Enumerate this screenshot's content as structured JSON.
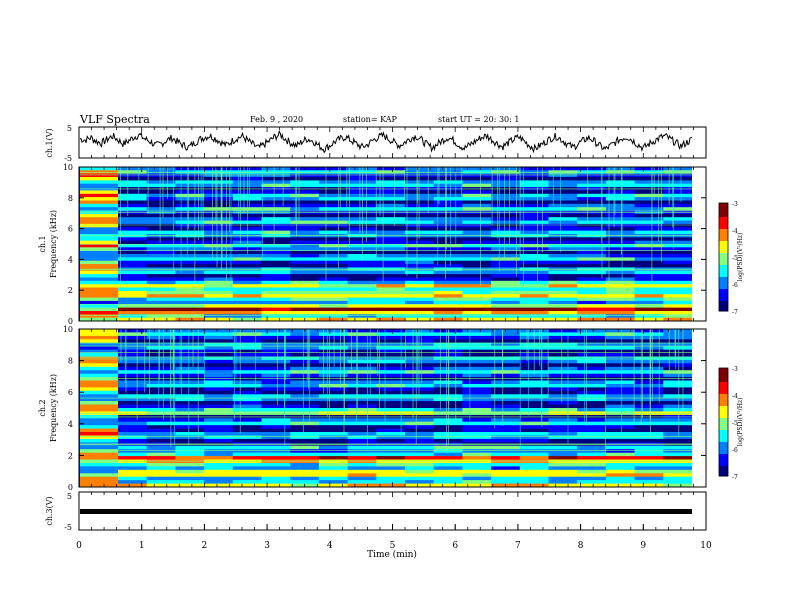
{
  "header": {
    "title": "VLF Spectra",
    "date": "Feb. 9 , 2020",
    "station": "station= KAP",
    "start": "start  UT =  20: 30: 1"
  },
  "chart_data": [
    {
      "type": "line",
      "ylabel": "ch.1(V)",
      "ylim": [
        -5,
        5
      ],
      "y_ticks": [
        "5",
        "-5"
      ],
      "xlim": [
        0,
        10
      ],
      "series": [
        {
          "description": "noisy waveform",
          "values": [
            1.2,
            0.8,
            1.6,
            0.4,
            -0.2,
            1.0,
            2.1,
            0.9,
            -0.5,
            0.6,
            1.8,
            2.4,
            1.1,
            0.3,
            -1.0,
            -0.4,
            0.7,
            1.5,
            0.2,
            -0.8,
            -1.6,
            -0.3,
            0.9,
            1.7,
            2.2,
            1.3,
            0.1,
            -0.9,
            0.4,
            1.4,
            2.0,
            0.6,
            -0.7,
            -1.8,
            -0.6,
            0.5,
            1.9,
            2.6,
            1.0,
            -0.2,
            -1.1,
            0.3,
            1.2,
            0.5,
            -0.9,
            -2.1,
            -1.2,
            0.2,
            1.1,
            1.8,
            0.7,
            -0.4,
            -1.5,
            -0.8,
            0.6,
            1.6,
            2.3,
            1.2,
            0.0,
            -1.0,
            0.1,
            1.3,
            2.1,
            0.9,
            -0.6,
            -1.7,
            -0.5,
            0.8,
            1.7,
            0.6,
            -0.8,
            -1.9,
            -0.7,
            0.4,
            1.5,
            2.2,
            1.0,
            -0.3,
            -1.4,
            -0.2,
            0.9,
            1.8,
            0.5,
            -1.0,
            -2.0,
            -0.9,
            0.3,
            1.4,
            2.0,
            0.8,
            -0.5,
            -1.6,
            -0.4,
            0.7,
            1.6,
            0.4,
            -1.1,
            -2.2,
            -1.0,
            0.2,
            1.3,
            1.9,
            0.7,
            -0.6,
            -1.8,
            -0.6,
            0.5,
            1.5,
            2.1,
            1.1,
            -0.1,
            -1.2,
            0.0,
            1.0
          ]
        }
      ]
    },
    {
      "type": "heatmap",
      "ylabel": "ch.1\nFrequency (kHz)",
      "xlim": [
        0,
        10
      ],
      "ylim": [
        0,
        10
      ],
      "y_ticks": [
        "0",
        "2",
        "4",
        "6",
        "8",
        "10"
      ],
      "colorbar": {
        "label": "log(PSD)(V²/Hz)",
        "ticks": [
          "-3",
          "-4",
          "-5",
          "-6",
          "-7"
        ],
        "range": [
          -7,
          -3
        ]
      },
      "description": "spectrogram; strong broadband emission before ~0.6 min, intense bands near 0–2 kHz, weaker above 6 kHz"
    },
    {
      "type": "heatmap",
      "ylabel": "ch.2\nFrequency (kHz)",
      "xlim": [
        0,
        10
      ],
      "ylim": [
        0,
        10
      ],
      "y_ticks": [
        "0",
        "2",
        "4",
        "6",
        "8",
        "10"
      ],
      "colorbar": {
        "label": "log(PSD)(V²/Hz)",
        "ticks": [
          "-3",
          "-4",
          "-5",
          "-6",
          "-7"
        ],
        "range": [
          -7,
          -3
        ]
      },
      "description": "spectrogram; strong emission before ~0.6 min, bands near 2 kHz and 5 kHz"
    },
    {
      "type": "line",
      "ylabel": "ch.3(V)",
      "ylim": [
        -5,
        5
      ],
      "y_ticks": [
        "5",
        "-5"
      ],
      "xlim": [
        0,
        10
      ],
      "x_ticks": [
        "0",
        "1",
        "2",
        "3",
        "4",
        "5",
        "6",
        "7",
        "8",
        "9",
        "10"
      ],
      "xlabel": "Time (min)",
      "series": [
        {
          "description": "flat signal",
          "values": [
            -1.5,
            -1.5
          ]
        }
      ]
    }
  ],
  "colors": {
    "colormap": [
      "#00007f",
      "#0000ff",
      "#0080ff",
      "#00ffff",
      "#80ff80",
      "#ffff00",
      "#ff8000",
      "#ff0000",
      "#7f0000"
    ]
  }
}
